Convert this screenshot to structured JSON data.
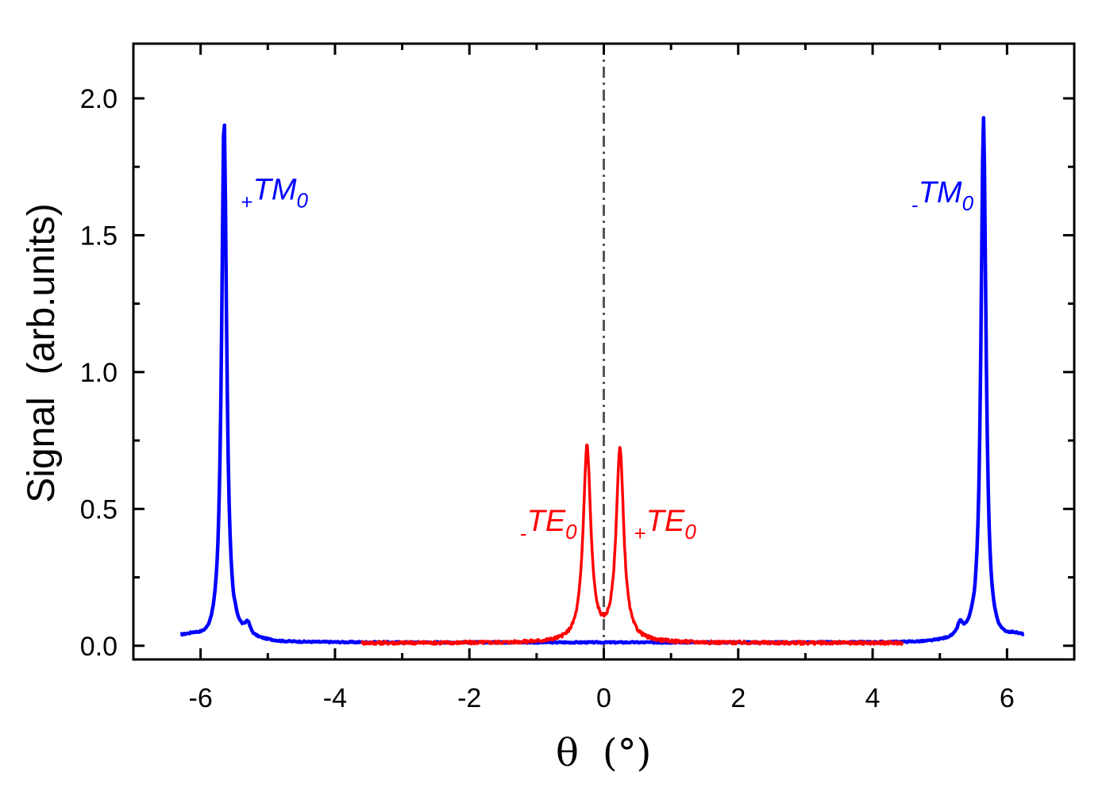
{
  "chart_data": {
    "type": "line",
    "xlabel": {
      "symbol": "θ",
      "unit": "(°)"
    },
    "ylabel": {
      "main": "Signal",
      "unit": "(arb.units)"
    },
    "xlim": [
      -7,
      7
    ],
    "ylim": [
      -0.05,
      2.2
    ],
    "xticks": [
      -6,
      -4,
      -2,
      0,
      2,
      4,
      6
    ],
    "xtick_labels": [
      "-6",
      "-4",
      "-2",
      "0",
      "2",
      "4",
      "6"
    ],
    "yticks": [
      0.0,
      0.5,
      1.0,
      1.5,
      2.0
    ],
    "ytick_labels": [
      "0.0",
      "0.5",
      "1.0",
      "1.5",
      "2.0"
    ],
    "reference_line": {
      "x": 0,
      "style": "dash-dot",
      "color": "#555555"
    },
    "series": [
      {
        "name": "TM",
        "color": "#0000ff",
        "x_range": [
          -6.3,
          6.25
        ],
        "baseline": 0.012,
        "peaks": [
          {
            "x": -5.65,
            "y": 1.93
          },
          {
            "x": -5.3,
            "y": 0.055
          },
          {
            "x": 5.3,
            "y": 0.055
          },
          {
            "x": 5.65,
            "y": 1.93
          }
        ]
      },
      {
        "name": "TE",
        "color": "#ff0000",
        "x_range": [
          -3.6,
          4.45
        ],
        "baseline": 0.01,
        "peaks": [
          {
            "x": -0.25,
            "y": 0.72
          },
          {
            "x": 0.24,
            "y": 0.71
          }
        ]
      }
    ],
    "annotations": [
      {
        "sub_prefix": "+",
        "main": "TM",
        "subscript": "0",
        "x": -5.4,
        "y": 1.63,
        "color": "#0000ff",
        "anchor": "start"
      },
      {
        "sub_prefix": "-",
        "main": "TM",
        "subscript": "0",
        "x": 5.5,
        "y": 1.62,
        "color": "#0000ff",
        "anchor": "end"
      },
      {
        "sub_prefix": "-",
        "main": "TE",
        "subscript": "0",
        "x": -0.4,
        "y": 0.42,
        "color": "#ff0000",
        "anchor": "end"
      },
      {
        "sub_prefix": "+",
        "main": "TE",
        "subscript": "0",
        "x": 0.45,
        "y": 0.42,
        "color": "#ff0000",
        "anchor": "start"
      }
    ]
  }
}
